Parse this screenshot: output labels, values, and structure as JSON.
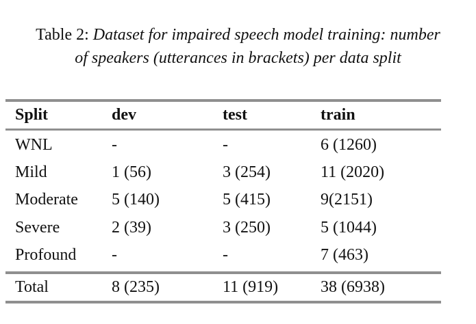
{
  "caption": {
    "label": "Table 2:",
    "text": "Dataset for impaired speech model training: number of speakers (utterances in brackets) per data split"
  },
  "table": {
    "headers": [
      "Split",
      "dev",
      "test",
      "train"
    ],
    "rows": [
      [
        "WNL",
        "-",
        "-",
        "6 (1260)"
      ],
      [
        "Mild",
        "1 (56)",
        "3 (254)",
        "11 (2020)"
      ],
      [
        "Moderate",
        "5 (140)",
        "5 (415)",
        "9(2151)"
      ],
      [
        "Severe",
        "2 (39)",
        "3 (250)",
        "5 (1044)"
      ],
      [
        "Profound",
        "-",
        "-",
        "7 (463)"
      ]
    ],
    "total": [
      "Total",
      "8 (235)",
      "11 (919)",
      "38 (6938)"
    ]
  }
}
